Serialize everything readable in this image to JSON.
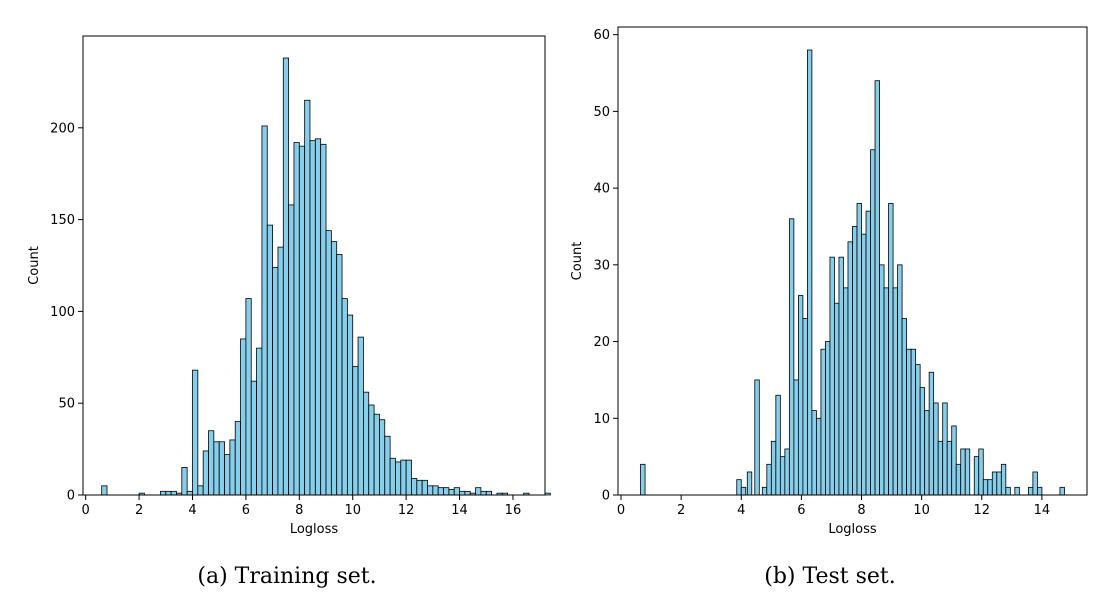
{
  "chart_data": [
    {
      "type": "bar",
      "subtype": "histogram",
      "caption": "(a) Training set.",
      "xlabel": "Logloss",
      "ylabel": "Count",
      "xlim": [
        -0.1,
        17.2
      ],
      "ylim": [
        0,
        250
      ],
      "xticks": [
        0,
        2,
        4,
        6,
        8,
        10,
        12,
        14,
        16
      ],
      "yticks": [
        0,
        50,
        100,
        150,
        200
      ],
      "bin_start": 0.6,
      "bin_width": 0.2,
      "values": [
        5,
        0,
        0,
        0,
        0,
        0,
        0,
        1,
        0,
        0,
        0,
        2,
        2,
        2,
        1,
        15,
        2,
        68,
        5,
        24,
        35,
        29,
        29,
        22,
        30,
        40,
        85,
        107,
        62,
        80,
        201,
        147,
        124,
        135,
        238,
        158,
        192,
        190,
        215,
        193,
        194,
        191,
        144,
        138,
        131,
        107,
        98,
        70,
        86,
        56,
        49,
        44,
        41,
        32,
        20,
        18,
        19,
        19,
        9,
        8,
        8,
        5,
        5,
        4,
        4,
        3,
        4,
        2,
        2,
        1,
        4,
        2,
        2,
        0,
        1,
        1,
        0,
        0,
        0,
        1,
        0,
        0,
        0,
        1
      ],
      "bar_color": "#87ceeb",
      "edge_color": "#000000"
    },
    {
      "type": "bar",
      "subtype": "histogram",
      "caption": "(b) Test set.",
      "xlabel": "Logloss",
      "ylabel": "Count",
      "xlim": [
        -0.1,
        15.5
      ],
      "ylim": [
        0,
        61
      ],
      "xticks": [
        0,
        2,
        4,
        6,
        8,
        10,
        12,
        14
      ],
      "yticks": [
        0,
        10,
        20,
        30,
        40,
        50,
        60
      ],
      "bins": [
        {
          "x": 0.65,
          "w": 0.15,
          "v": 4
        },
        {
          "x": 3.85,
          "w": 0.15,
          "v": 2
        },
        {
          "x": 4.0,
          "w": 0.15,
          "v": 1
        },
        {
          "x": 4.2,
          "w": 0.15,
          "v": 3
        },
        {
          "x": 4.45,
          "w": 0.15,
          "v": 15
        },
        {
          "x": 4.7,
          "w": 0.15,
          "v": 1
        },
        {
          "x": 4.85,
          "w": 0.15,
          "v": 4
        },
        {
          "x": 5.0,
          "w": 0.15,
          "v": 7
        },
        {
          "x": 5.15,
          "w": 0.15,
          "v": 13
        },
        {
          "x": 5.3,
          "w": 0.15,
          "v": 5
        },
        {
          "x": 5.45,
          "w": 0.15,
          "v": 6
        },
        {
          "x": 5.6,
          "w": 0.15,
          "v": 36
        },
        {
          "x": 5.75,
          "w": 0.15,
          "v": 15
        },
        {
          "x": 5.9,
          "w": 0.15,
          "v": 26
        },
        {
          "x": 6.05,
          "w": 0.15,
          "v": 23
        },
        {
          "x": 6.2,
          "w": 0.15,
          "v": 58
        },
        {
          "x": 6.35,
          "w": 0.15,
          "v": 11
        },
        {
          "x": 6.5,
          "w": 0.15,
          "v": 10
        },
        {
          "x": 6.65,
          "w": 0.15,
          "v": 19
        },
        {
          "x": 6.8,
          "w": 0.15,
          "v": 20
        },
        {
          "x": 6.95,
          "w": 0.15,
          "v": 31
        },
        {
          "x": 7.1,
          "w": 0.15,
          "v": 25
        },
        {
          "x": 7.25,
          "w": 0.15,
          "v": 31
        },
        {
          "x": 7.4,
          "w": 0.15,
          "v": 27
        },
        {
          "x": 7.55,
          "w": 0.15,
          "v": 33
        },
        {
          "x": 7.7,
          "w": 0.15,
          "v": 35
        },
        {
          "x": 7.85,
          "w": 0.15,
          "v": 38
        },
        {
          "x": 8.0,
          "w": 0.15,
          "v": 34
        },
        {
          "x": 8.15,
          "w": 0.15,
          "v": 37
        },
        {
          "x": 8.3,
          "w": 0.15,
          "v": 45
        },
        {
          "x": 8.45,
          "w": 0.15,
          "v": 54
        },
        {
          "x": 8.6,
          "w": 0.15,
          "v": 30
        },
        {
          "x": 8.75,
          "w": 0.15,
          "v": 27
        },
        {
          "x": 8.9,
          "w": 0.15,
          "v": 38
        },
        {
          "x": 9.05,
          "w": 0.15,
          "v": 27
        },
        {
          "x": 9.2,
          "w": 0.15,
          "v": 30
        },
        {
          "x": 9.35,
          "w": 0.15,
          "v": 23
        },
        {
          "x": 9.5,
          "w": 0.15,
          "v": 19
        },
        {
          "x": 9.65,
          "w": 0.15,
          "v": 19
        },
        {
          "x": 9.8,
          "w": 0.15,
          "v": 17
        },
        {
          "x": 9.95,
          "w": 0.15,
          "v": 14
        },
        {
          "x": 10.1,
          "w": 0.15,
          "v": 11
        },
        {
          "x": 10.25,
          "w": 0.15,
          "v": 16
        },
        {
          "x": 10.4,
          "w": 0.15,
          "v": 12
        },
        {
          "x": 10.55,
          "w": 0.15,
          "v": 7
        },
        {
          "x": 10.7,
          "w": 0.15,
          "v": 12
        },
        {
          "x": 10.85,
          "w": 0.15,
          "v": 7
        },
        {
          "x": 11.0,
          "w": 0.15,
          "v": 9
        },
        {
          "x": 11.15,
          "w": 0.15,
          "v": 4
        },
        {
          "x": 11.3,
          "w": 0.15,
          "v": 6
        },
        {
          "x": 11.45,
          "w": 0.15,
          "v": 6
        },
        {
          "x": 11.6,
          "w": 0.15,
          "v": 0
        },
        {
          "x": 11.75,
          "w": 0.15,
          "v": 5
        },
        {
          "x": 11.9,
          "w": 0.15,
          "v": 6
        },
        {
          "x": 12.05,
          "w": 0.15,
          "v": 2
        },
        {
          "x": 12.2,
          "w": 0.15,
          "v": 2
        },
        {
          "x": 12.35,
          "w": 0.15,
          "v": 3
        },
        {
          "x": 12.5,
          "w": 0.15,
          "v": 3
        },
        {
          "x": 12.65,
          "w": 0.15,
          "v": 4
        },
        {
          "x": 12.8,
          "w": 0.15,
          "v": 1
        },
        {
          "x": 13.1,
          "w": 0.15,
          "v": 1
        },
        {
          "x": 13.55,
          "w": 0.15,
          "v": 1
        },
        {
          "x": 13.7,
          "w": 0.15,
          "v": 3
        },
        {
          "x": 13.85,
          "w": 0.15,
          "v": 1
        },
        {
          "x": 14.6,
          "w": 0.15,
          "v": 1
        }
      ],
      "bar_color": "#87ceeb",
      "edge_color": "#000000"
    }
  ]
}
